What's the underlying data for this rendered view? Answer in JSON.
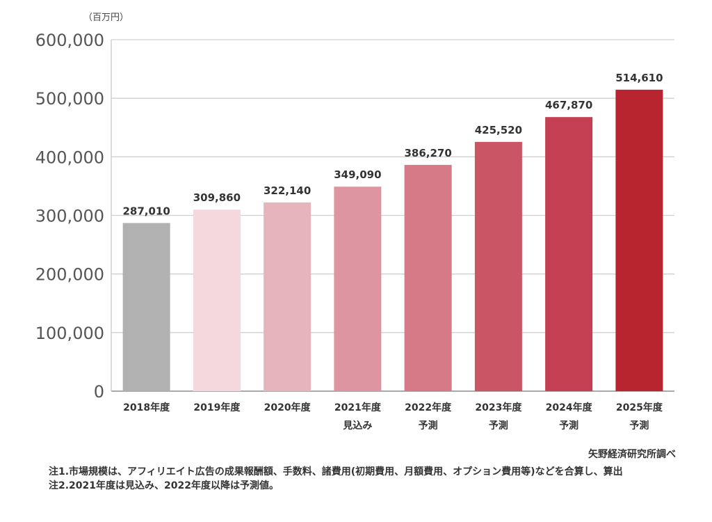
{
  "chart_data": {
    "type": "bar",
    "title": "",
    "unit_label": "（百万円）",
    "xlabel": "",
    "ylabel": "",
    "ylim": [
      0,
      600000
    ],
    "yticks": [
      0,
      100000,
      200000,
      300000,
      400000,
      500000,
      600000
    ],
    "ytick_labels": [
      "0",
      "100,000",
      "200,000",
      "300,000",
      "400,000",
      "500,000",
      "600,000"
    ],
    "grid": true,
    "categories": [
      [
        "2018年度",
        ""
      ],
      [
        "2019年度",
        ""
      ],
      [
        "2020年度",
        ""
      ],
      [
        "2021年度",
        "見込み"
      ],
      [
        "2022年度",
        "予測"
      ],
      [
        "2023年度",
        "予測"
      ],
      [
        "2024年度",
        "予測"
      ],
      [
        "2025年度",
        "予測"
      ]
    ],
    "values": [
      287010,
      309860,
      322140,
      349090,
      386270,
      425520,
      467870,
      514610
    ],
    "value_labels": [
      "287,010",
      "309,860",
      "322,140",
      "349,090",
      "386,270",
      "425,520",
      "467,870",
      "514,610"
    ],
    "colors": [
      "#b1b1b1",
      "#f4d8dd",
      "#e6b4bd",
      "#dd96a1",
      "#d67a88",
      "#c95565",
      "#c33f51",
      "#b9252f"
    ]
  },
  "source": "矢野経済研究所調べ",
  "notes": [
    "注1.市場規模は、アフィリエイト広告の成果報酬額、手数料、諸費用(初期費用、月額費用、オプション費用等)などを合算し、算出",
    "注2.2021年度は見込み、2022年度以降は予測値。"
  ]
}
